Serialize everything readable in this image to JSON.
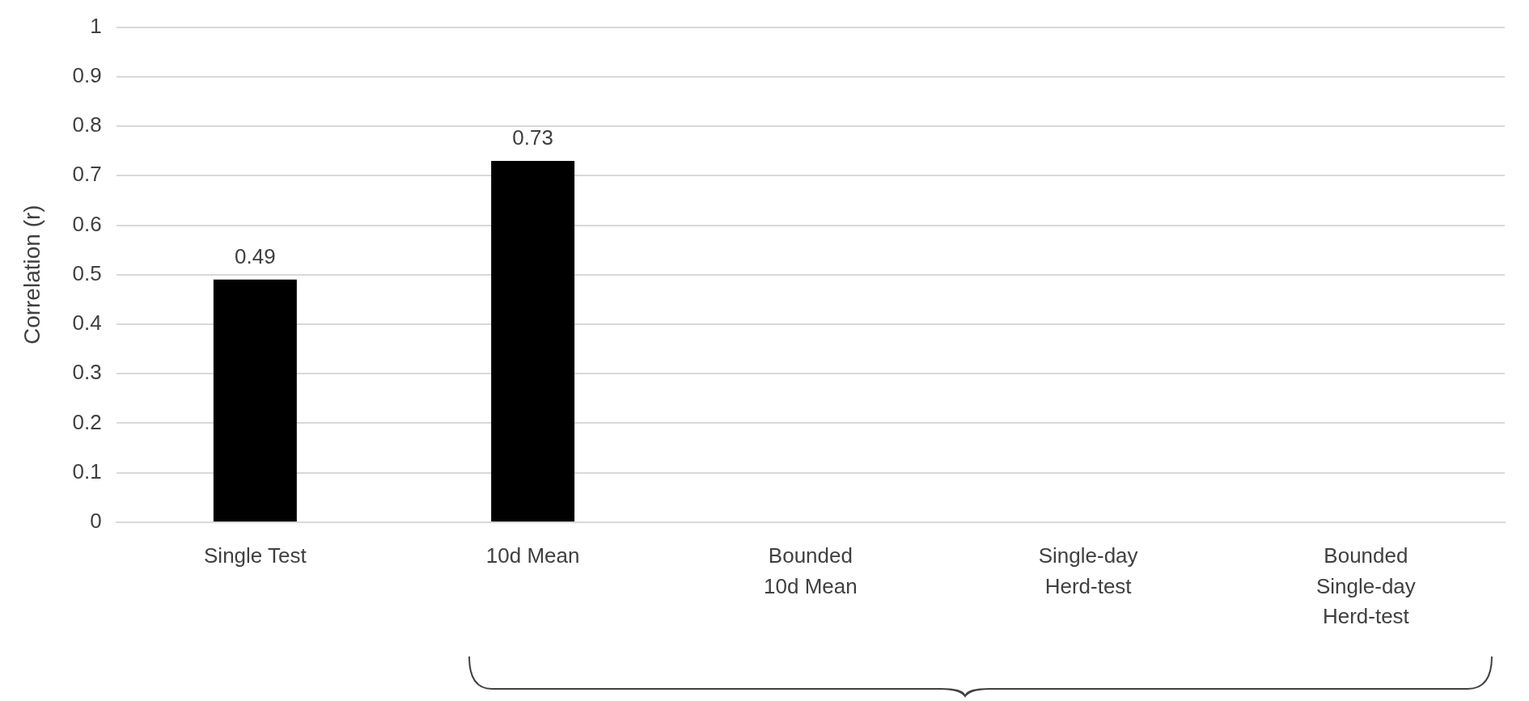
{
  "chart_data": {
    "type": "bar",
    "ylabel": "Correlation (r)",
    "categories": [
      "Single Test",
      "10d Mean",
      "Bounded 10d Mean",
      "Single-day Herd-test",
      "Bounded Single-day Herd-test"
    ],
    "values": [
      0.49,
      0.73,
      null,
      null,
      null
    ],
    "color": "#000000",
    "ylim": [
      0,
      1
    ],
    "yticks": [
      0,
      0.1,
      0.2,
      0.3,
      0.4,
      0.5,
      0.6,
      0.7,
      0.8,
      0.9,
      1
    ],
    "grid": "y",
    "data_labels": true,
    "legend": false
  }
}
